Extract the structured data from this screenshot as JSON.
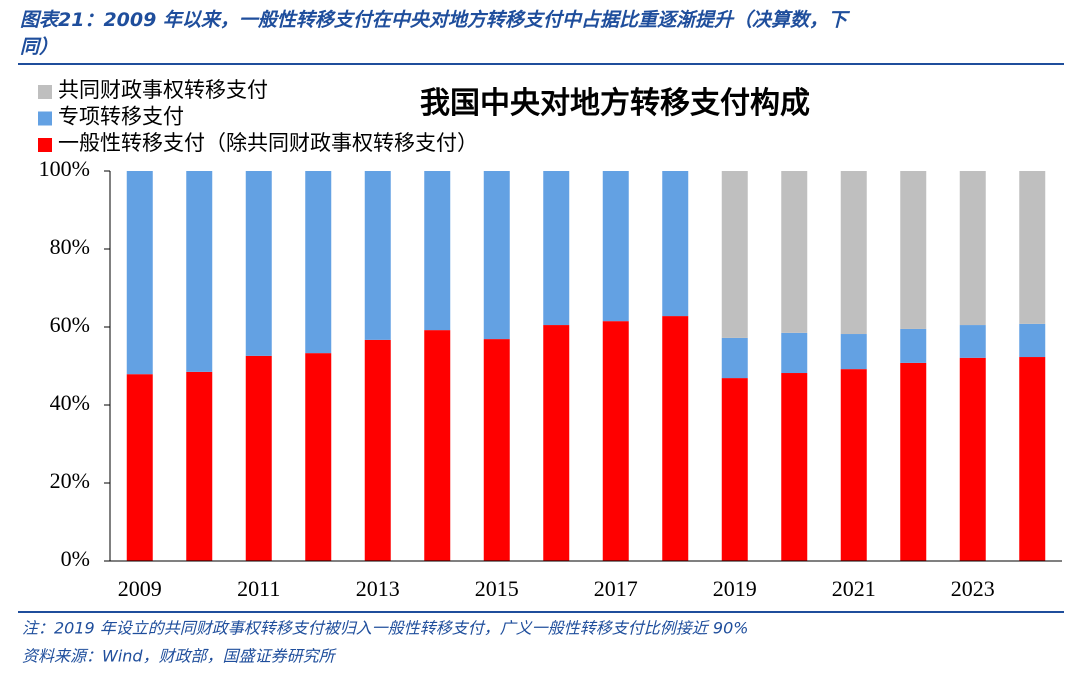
{
  "header": {
    "title": "图表21：2009 年以来，一般性转移支付在中央对地方转移支付中占据比重逐渐提升（决算数，下同）"
  },
  "chart_data": {
    "type": "stacked-bar",
    "title": "我国中央对地方转移支付构成",
    "categories": [
      "2009",
      null,
      "2011",
      null,
      "2013",
      null,
      "2015",
      null,
      "2017",
      null,
      "2019",
      null,
      "2021",
      null,
      "2023",
      null
    ],
    "series": [
      {
        "name": "共同财政事权转移支付",
        "color": "#bfbfbf",
        "values": [
          null,
          null,
          null,
          null,
          null,
          null,
          null,
          null,
          null,
          null,
          42.8,
          41.5,
          41.8,
          40.5,
          39.5,
          39.2
        ]
      },
      {
        "name": "专项转移支付",
        "color": "#63a1e3",
        "values": [
          52.1,
          51.5,
          47.4,
          46.7,
          43.3,
          40.8,
          43.1,
          39.5,
          38.5,
          37.2,
          10.3,
          10.3,
          9.0,
          8.7,
          8.4,
          8.5
        ]
      },
      {
        "name": "一般性转移支付（除共同财政事权转移支付）",
        "color": "#ff0000",
        "values": [
          47.9,
          48.5,
          52.6,
          53.3,
          56.7,
          59.2,
          56.9,
          60.5,
          61.5,
          62.8,
          46.9,
          48.2,
          49.2,
          50.8,
          52.1,
          52.3
        ]
      }
    ],
    "ylim": [
      0,
      100
    ],
    "yticks": [
      {
        "value": 0,
        "label": "0%"
      },
      {
        "value": 20,
        "label": "20%"
      },
      {
        "value": 40,
        "label": "40%"
      },
      {
        "value": 60,
        "label": "60%"
      },
      {
        "value": 80,
        "label": "80%"
      },
      {
        "value": 100,
        "label": "100%"
      }
    ],
    "legend": "top-left"
  },
  "footer": {
    "note": "注：2019 年设立的共同财政事权转移支付被归入一般性转移支付，广义一般性转移支付比例接近 90%",
    "source": "资料来源：Wind，财政部，国盛证券研究所"
  }
}
